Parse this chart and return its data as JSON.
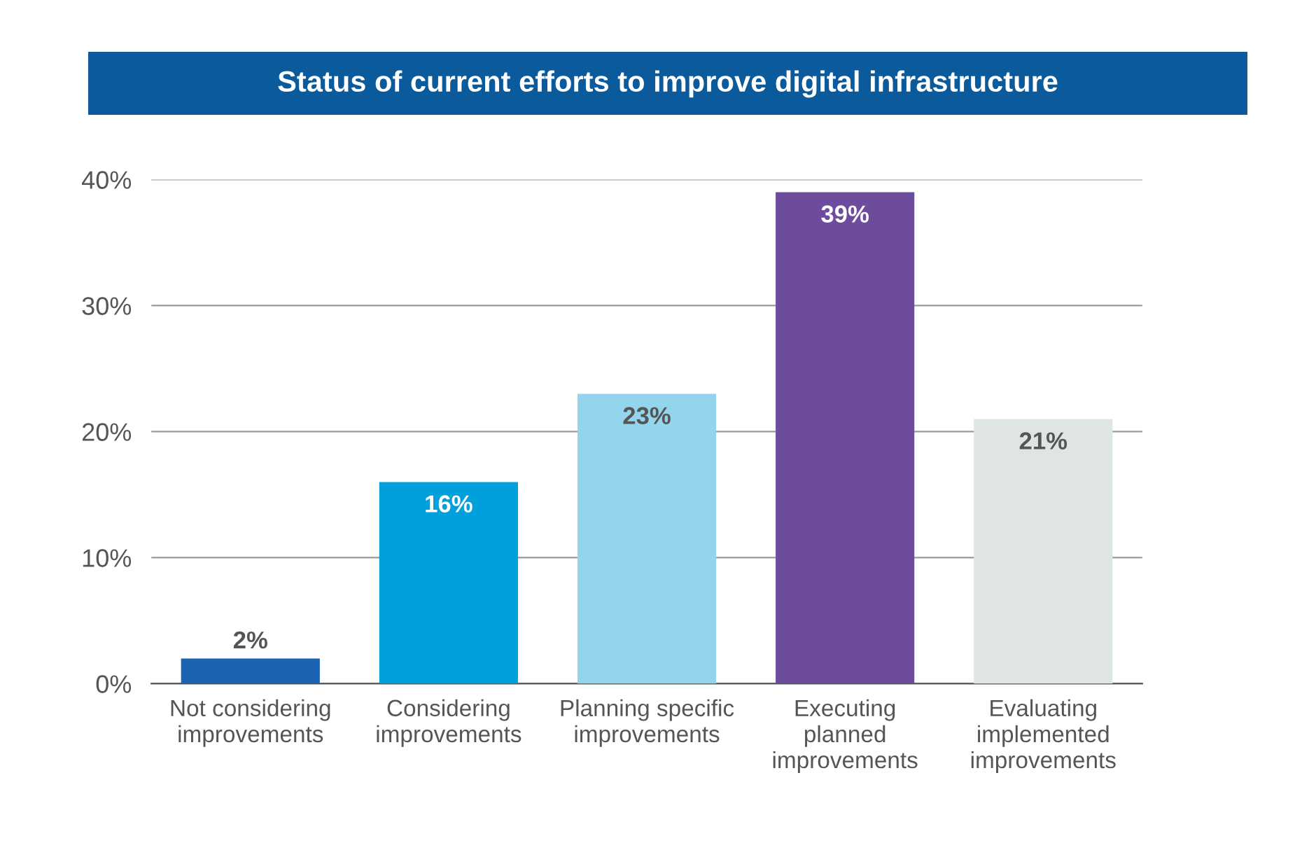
{
  "chart_data": {
    "type": "bar",
    "title": "Status of current efforts to improve digital infrastructure",
    "categories": [
      "Not considering\nimprovements",
      "Considering\nimprovements",
      "Planning specific\nimprovements",
      "Executing\nplanned\nimprovements",
      "Evaluating\nimplemented\nimprovements"
    ],
    "values": [
      2,
      16,
      23,
      39,
      21
    ],
    "colors": [
      "#1b63b0",
      "#00a0dc",
      "#94d5ee",
      "#6d4c9d",
      "#dfe5e5"
    ],
    "value_labels": [
      "2%",
      "16%",
      "23%",
      "39%",
      "21%"
    ],
    "ylim": [
      0,
      40
    ],
    "yticks": [
      {
        "value": 0,
        "label": "0%"
      },
      {
        "value": 10,
        "label": "10%"
      },
      {
        "value": 20,
        "label": "20%"
      },
      {
        "value": 30,
        "label": "30%"
      },
      {
        "value": 40,
        "label": "40%"
      }
    ],
    "grid": "y",
    "legend": false
  }
}
